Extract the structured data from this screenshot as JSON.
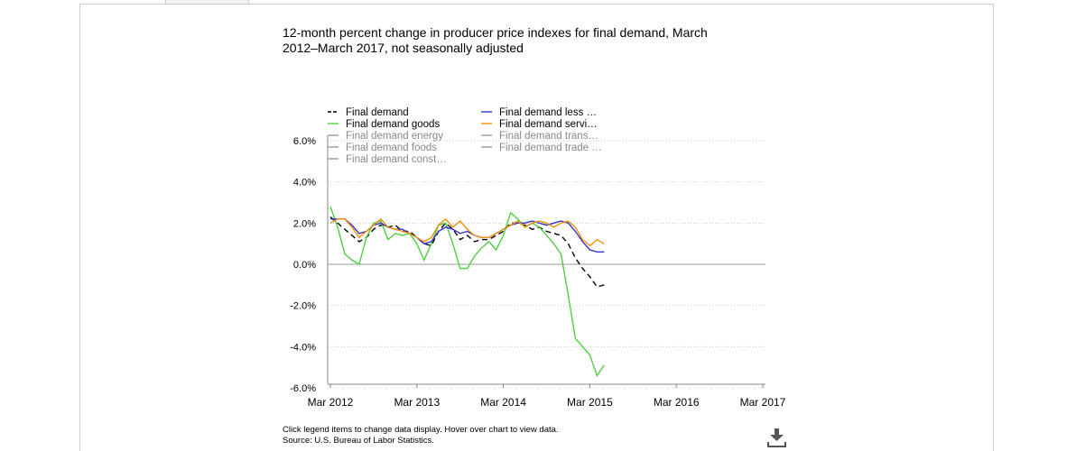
{
  "chart_data": {
    "type": "line",
    "title": "12-month percent change in producer price indexes for final demand, March 2012–March 2017, not seasonally adjusted",
    "note": "Click legend items to change data display. Hover over chart to view data.",
    "source": "Source: U.S. Bureau of Labor Statistics.",
    "x": [
      "2012-03",
      "2012-04",
      "2012-05",
      "2012-06",
      "2012-07",
      "2012-08",
      "2012-09",
      "2012-10",
      "2012-11",
      "2012-12",
      "2013-01",
      "2013-02",
      "2013-03",
      "2013-04",
      "2013-05",
      "2013-06",
      "2013-07",
      "2013-08",
      "2013-09",
      "2013-10",
      "2013-11",
      "2013-12",
      "2014-01",
      "2014-02",
      "2014-03",
      "2014-04",
      "2014-05",
      "2014-06",
      "2014-07",
      "2014-08",
      "2014-09",
      "2014-10",
      "2014-11",
      "2014-12",
      "2015-01",
      "2015-02",
      "2015-03",
      "2015-04",
      "2015-05"
    ],
    "xlim": [
      "2012-03",
      "2017-03"
    ],
    "xticks": [
      {
        "value": "2012-03",
        "label": "Mar 2012"
      },
      {
        "value": "2013-03",
        "label": "Mar 2013"
      },
      {
        "value": "2014-03",
        "label": "Mar 2014"
      },
      {
        "value": "2015-03",
        "label": "Mar 2015"
      },
      {
        "value": "2016-03",
        "label": "Mar 2016"
      },
      {
        "value": "2017-03",
        "label": "Mar 2017"
      }
    ],
    "ylim": [
      -6,
      6
    ],
    "yticks": [
      {
        "value": 6,
        "label": "6.0%"
      },
      {
        "value": 4,
        "label": "4.0%"
      },
      {
        "value": 2,
        "label": "2.0%"
      },
      {
        "value": 0,
        "label": "0.0%"
      },
      {
        "value": -2,
        "label": "-2.0%"
      },
      {
        "value": -4,
        "label": "-4.0%"
      },
      {
        "value": -6,
        "label": "-6.0%"
      }
    ],
    "grid": true,
    "legend": "top",
    "series": [
      {
        "name": "Final demand",
        "color": "#000000",
        "dashed": true,
        "visible": true,
        "values": [
          2.3,
          2.0,
          1.7,
          1.4,
          1.1,
          1.3,
          1.7,
          1.9,
          1.8,
          1.9,
          1.6,
          1.6,
          1.3,
          1.0,
          0.9,
          1.6,
          2.0,
          1.7,
          1.2,
          1.4,
          1.1,
          1.2,
          1.2,
          1.4,
          1.6,
          2.0,
          2.0,
          1.9,
          1.7,
          1.8,
          1.6,
          1.5,
          1.4,
          1.0,
          0.3,
          -0.2,
          -0.6,
          -1.1,
          -1.0
        ]
      },
      {
        "name": "Final demand goods",
        "color": "#4fcf3f",
        "visible": true,
        "values": [
          2.8,
          1.8,
          0.5,
          0.2,
          0.0,
          1.3,
          2.0,
          2.1,
          1.2,
          1.5,
          1.4,
          1.5,
          1.0,
          0.2,
          1.0,
          1.9,
          2.0,
          1.0,
          -0.2,
          -0.2,
          0.4,
          0.8,
          1.1,
          0.7,
          1.4,
          2.5,
          2.2,
          1.8,
          2.0,
          1.8,
          1.4,
          1.0,
          0.5,
          -1.5,
          -3.6,
          -4.0,
          -4.4,
          -5.4,
          -4.9
        ]
      },
      {
        "name": "Final demand energy",
        "color": "#999999",
        "visible": false
      },
      {
        "name": "Final demand foods",
        "color": "#999999",
        "visible": false
      },
      {
        "name": "Final demand const…",
        "color": "#999999",
        "visible": false
      },
      {
        "name": "Final demand less …",
        "color": "#3333cc",
        "visible": true,
        "values": [
          2.2,
          2.2,
          2.2,
          1.9,
          1.5,
          1.6,
          1.9,
          2.0,
          1.8,
          1.7,
          1.7,
          1.5,
          1.3,
          1.0,
          1.1,
          1.6,
          1.8,
          1.7,
          1.5,
          1.6,
          1.4,
          1.3,
          1.3,
          1.5,
          1.7,
          1.9,
          2.0,
          2.0,
          2.1,
          2.0,
          1.9,
          2.0,
          2.1,
          2.0,
          1.6,
          1.1,
          0.7,
          0.6,
          0.6
        ]
      },
      {
        "name": "Final demand servi…",
        "color": "#f0900a",
        "visible": true,
        "values": [
          2.0,
          2.2,
          2.2,
          1.8,
          1.3,
          1.6,
          1.9,
          2.2,
          1.8,
          1.7,
          1.6,
          1.5,
          1.3,
          1.1,
          1.3,
          1.9,
          2.2,
          1.8,
          2.1,
          1.7,
          1.4,
          1.3,
          1.3,
          1.5,
          1.7,
          1.9,
          2.1,
          1.8,
          2.0,
          2.1,
          2.0,
          1.8,
          2.0,
          2.1,
          1.8,
          1.2,
          0.9,
          1.2,
          1.0
        ]
      },
      {
        "name": "Final demand trans…",
        "color": "#999999",
        "visible": false
      },
      {
        "name": "Final demand trade …",
        "color": "#999999",
        "visible": false
      }
    ]
  }
}
